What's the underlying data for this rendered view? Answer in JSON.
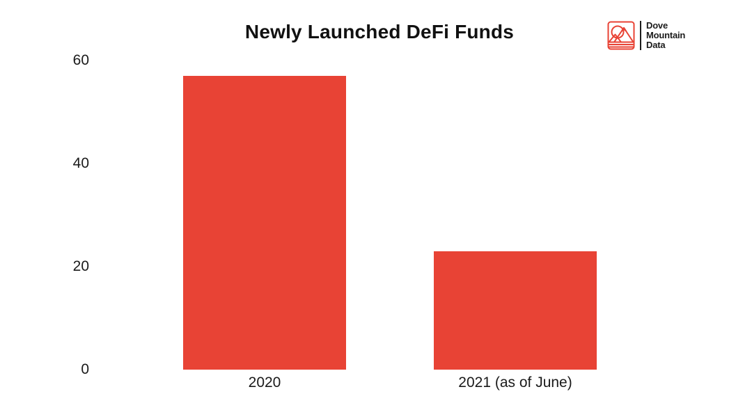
{
  "chart_data": {
    "type": "bar",
    "title": "Newly Launched DeFi Funds",
    "categories": [
      "2020",
      "2021 (as of June)"
    ],
    "values": [
      57,
      23
    ],
    "xlabel": "",
    "ylabel": "",
    "yticks": [
      0,
      20,
      40,
      60
    ],
    "ylim": [
      0,
      60
    ],
    "bar_color": "#E84335",
    "grid": false,
    "legend": "none",
    "background": "#FFFFFF"
  },
  "logo": {
    "lines": [
      "Dove",
      "Mountain",
      "Data"
    ],
    "icon": "mountain-sun-icon",
    "icon_color": "#E84335",
    "text_color": "#1B1B1B"
  }
}
